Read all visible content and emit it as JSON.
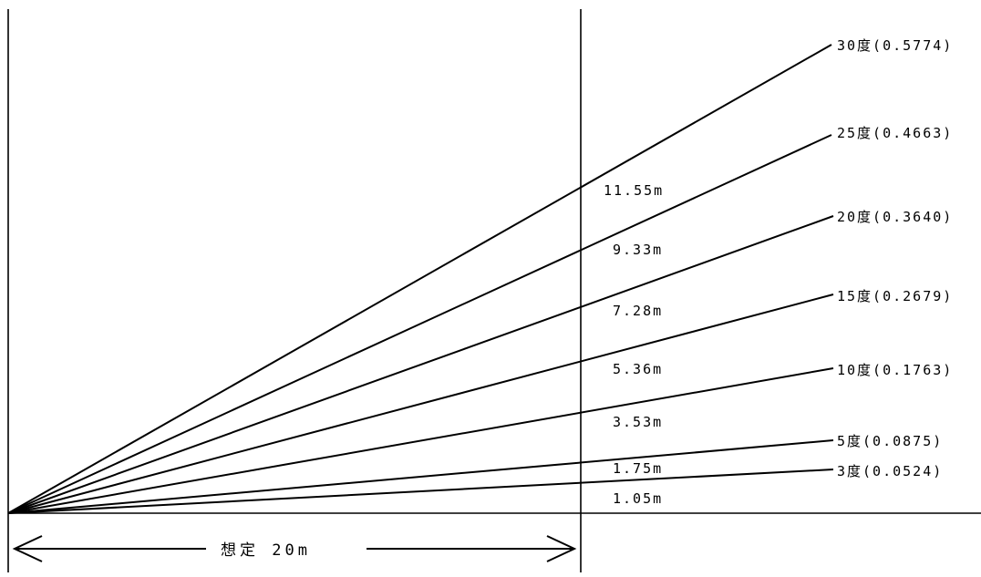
{
  "diagram": {
    "height_labels": [
      "11.55m",
      "9.33m",
      "7.28m",
      "5.36m",
      "3.53m",
      "1.75m",
      "1.05m"
    ],
    "slope_labels": [
      "30度(0.5774)",
      "25度(0.4663)",
      "20度(0.3640)",
      "15度(0.2679)",
      "10度(0.1763)",
      "5度(0.0875)",
      "3度(0.0524)"
    ],
    "dimension_label": "想定 20m"
  }
}
